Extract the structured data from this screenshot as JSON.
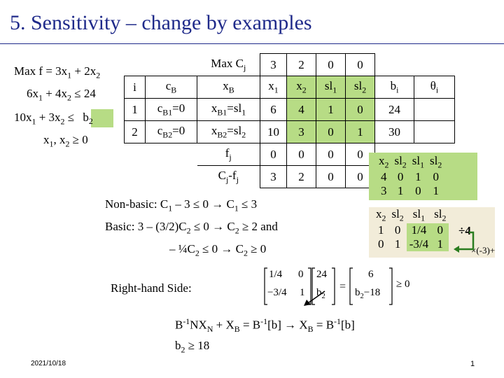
{
  "slide": {
    "title": "5. Sensitivity – change by examples",
    "date": "2021/10/18",
    "page_number": "1"
  },
  "problem": {
    "objective_prefix": "Max f = 3x",
    "objective_mid": " + 2x",
    "c1_prefix": "6x",
    "c1_mid": " + 4x",
    "c1_rel": "≤ 24",
    "c2_prefix": "10x",
    "c2_mid": " + 3x",
    "c2_rel": "≤",
    "c2_rhs": "b",
    "nonneg_prefix": "x",
    "nonneg_mid": ", x",
    "nonneg_rel": "≥ 0"
  },
  "tableau": {
    "max_c_label": "Max C",
    "c_values": [
      "3",
      "2",
      "0",
      "0"
    ],
    "header": [
      "i",
      "c",
      "x",
      "x",
      "x",
      "sl",
      "sl",
      "b",
      "θ"
    ],
    "rows": [
      {
        "i": "1",
        "cb": "c",
        "cb_val": "=0",
        "xb": "x",
        "xb_val": "=sl",
        "cells": [
          "6",
          "4",
          "1",
          "0"
        ],
        "b": "24",
        "theta": ""
      },
      {
        "i": "2",
        "cb": "c",
        "cb_val": "=0",
        "xb": "x",
        "xb_val": "=sl",
        "cells": [
          "10",
          "3",
          "0",
          "1"
        ],
        "b": "30",
        "theta": ""
      }
    ],
    "fj_label": "f",
    "fj_values": [
      "0",
      "0",
      "0",
      "0"
    ],
    "cj_fj_label": "C",
    "cj_fj_values": [
      "3",
      "2",
      "0",
      "0"
    ]
  },
  "mini_table_1": {
    "headers": [
      "x",
      "sl",
      "sl",
      "sl"
    ],
    "rows": [
      [
        "4",
        "0",
        "1",
        "0"
      ],
      [
        "3",
        "1",
        "0",
        "1"
      ]
    ]
  },
  "mini_table_2": {
    "headers": [
      "x",
      "sl",
      "sl",
      "sl"
    ],
    "rows": [
      [
        "1",
        "0",
        "1/4",
        "0"
      ],
      [
        "0",
        "1",
        "-3/4",
        "1"
      ]
    ],
    "op_div": "÷4",
    "op_mult": "×(-3)+"
  },
  "analysis": {
    "nonbasic": "Non-basic: C",
    "nonbasic_rest": " – 3 ≤ 0 → C",
    "nonbasic_end": " ≤ 3",
    "basic": "Basic: 3 – (3/2)C",
    "basic_rest": " ≤ 0 → C",
    "basic_end": " ≥ 2  and",
    "basic2": "– ¼C",
    "basic2_rest": " ≤ 0 → C",
    "basic2_end": " ≥ 0",
    "rhs_label": "Right-hand Side:",
    "formula": "NX",
    "final": "b",
    "final_rel": " ≥ 18"
  },
  "matrix": {
    "inv": [
      [
        "1/4",
        "0"
      ],
      [
        "−3/4",
        "1"
      ]
    ],
    "vec": [
      "24",
      "b"
    ],
    "result": [
      "6",
      "b"
    ],
    "result_tail": "−18",
    "rel": "≥ 0"
  }
}
